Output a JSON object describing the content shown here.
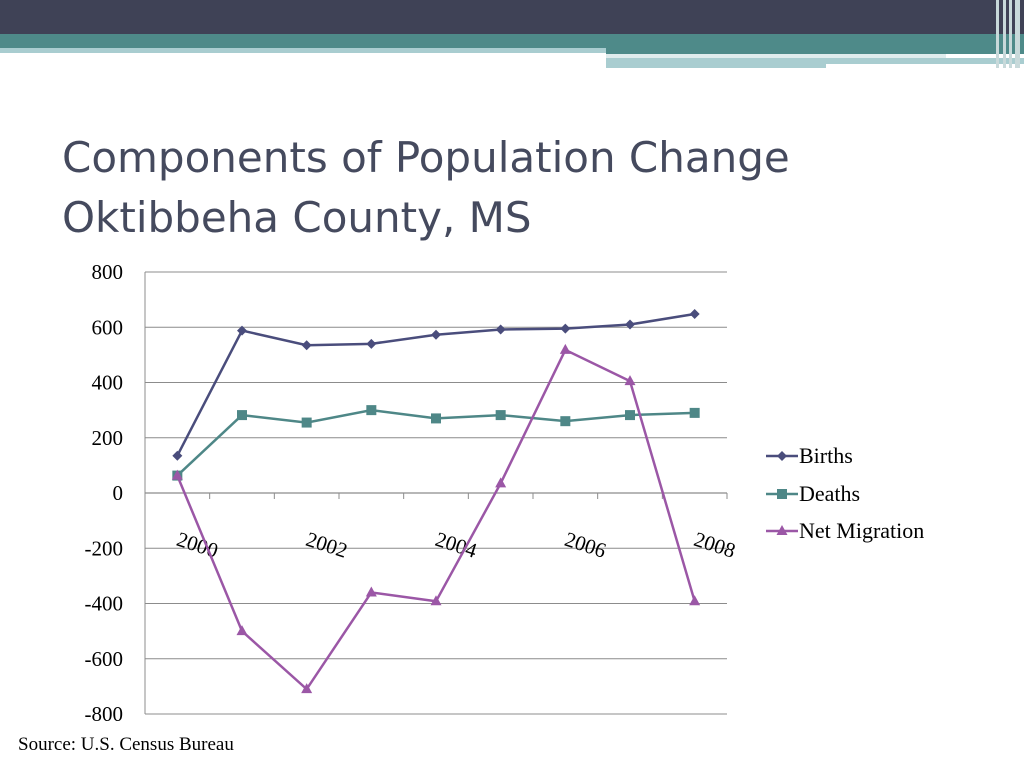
{
  "slide": {
    "title_line1": "Components of Population Change",
    "title_line2": "Oktibbeha County, MS",
    "source": "Source:  U.S. Census Bureau"
  },
  "colors": {
    "header_dark": "#3f4256",
    "header_teal": "#4e8a89",
    "title": "#454a5e",
    "births": "#4a4d7c",
    "deaths": "#4e8787",
    "net_migration": "#9b57a6"
  },
  "chart_data": {
    "type": "line",
    "title": "",
    "xlabel": "",
    "ylabel": "",
    "x": [
      2000,
      2001,
      2002,
      2003,
      2004,
      2005,
      2006,
      2007,
      2008
    ],
    "x_tick_labels": [
      "2000",
      "2002",
      "2004",
      "2006",
      "2008"
    ],
    "y_ticks": [
      800,
      600,
      400,
      200,
      0,
      -200,
      -400,
      -600,
      -800
    ],
    "ylim": [
      -800,
      800
    ],
    "grid": "horizontal",
    "legend_position": "right",
    "series": [
      {
        "name": "Births",
        "marker": "diamond",
        "color": "#4a4d7c",
        "values": [
          135,
          588,
          535,
          540,
          573,
          592,
          595,
          610,
          648
        ]
      },
      {
        "name": "Deaths",
        "marker": "square",
        "color": "#4e8787",
        "values": [
          63,
          282,
          255,
          300,
          270,
          282,
          260,
          282,
          290
        ]
      },
      {
        "name": "Net Migration",
        "marker": "triangle",
        "color": "#9b57a6",
        "values": [
          63,
          -500,
          -710,
          -360,
          -392,
          35,
          518,
          405,
          -392
        ]
      }
    ]
  }
}
